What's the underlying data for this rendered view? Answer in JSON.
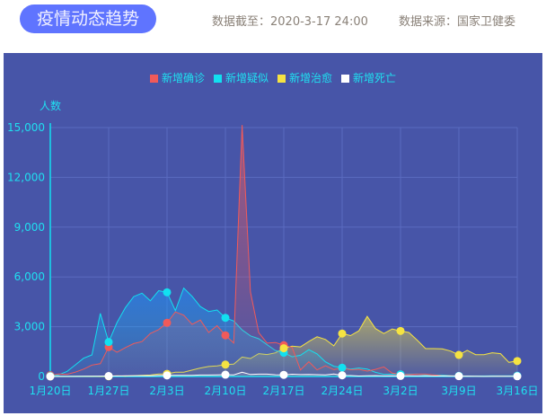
{
  "header": {
    "title": "疫情动态趋势",
    "updated": "数据截至：2020-3-17 24:00",
    "source": "数据来源：国家卫健委"
  },
  "chart_data": {
    "type": "area",
    "ylabel": "人数",
    "ylim": [
      0,
      15000
    ],
    "yticks": [
      "0",
      "3,000",
      "6,000",
      "9,000",
      "12,000",
      "15,000"
    ],
    "xticks": [
      "1月20日",
      "1月27日",
      "2月3日",
      "2月10日",
      "2月17日",
      "2月24日",
      "3月2日",
      "3月9日",
      "3月16日"
    ],
    "x_start": "1月20日",
    "x_end": "3月16日",
    "grid": true,
    "legend": "top",
    "series": [
      {
        "name": "新增确诊",
        "color": "#f05a5a",
        "values": [
          77,
          149,
          131,
          259,
          444,
          688,
          769,
          1771,
          1459,
          1737,
          1982,
          2102,
          2590,
          2829,
          3235,
          3887,
          3694,
          3143,
          3399,
          2656,
          3062,
          2478,
          2015,
          15152,
          5090,
          2641,
          2009,
          2048,
          1886,
          1749,
          394,
          889,
          397,
          648,
          409,
          508,
          406,
          433,
          327,
          427,
          573,
          202,
          125,
          119,
          139,
          143,
          99,
          44,
          40,
          19,
          24,
          15,
          8,
          11,
          20,
          16,
          21
        ]
      },
      {
        "name": "新增疑似",
        "color": "#12e0f0",
        "values": [
          27,
          100,
          300,
          700,
          1100,
          1300,
          3800,
          2077,
          3248,
          4148,
          4812,
          5019,
          4562,
          5173,
          5072,
          3971,
          5328,
          4833,
          4214,
          3916,
          4008,
          3536,
          3342,
          2807,
          2450,
          2277,
          1918,
          1563,
          1432,
          1185,
          1277,
          1614,
          1361,
          882,
          620,
          530,
          439,
          508,
          452,
          248,
          132,
          141,
          129,
          143,
          143,
          102,
          99,
          84,
          60,
          36,
          31,
          33,
          33,
          45,
          39,
          41,
          45
        ]
      },
      {
        "name": "新增治愈",
        "color": "#f5e342",
        "values": [
          0,
          3,
          0,
          6,
          3,
          11,
          2,
          9,
          43,
          21,
          47,
          72,
          85,
          147,
          157,
          262,
          261,
          387,
          510,
          600,
          632,
          716,
          744,
          1171,
          1081,
          1373,
          1323,
          1425,
          1701,
          1824,
          1779,
          2109,
          2394,
          2231,
          1846,
          2589,
          2464,
          2750,
          3622,
          2885,
          2589,
          2867,
          2742,
          2652,
          2189,
          1681,
          1678,
          1661,
          1535,
          1297,
          1578,
          1318,
          1318,
          1427,
          1375,
          849,
          930
        ]
      },
      {
        "name": "新增死亡",
        "color": "#ffffff",
        "values": [
          0,
          3,
          8,
          8,
          16,
          15,
          24,
          26,
          26,
          38,
          43,
          46,
          45,
          57,
          64,
          65,
          73,
          73,
          86,
          89,
          97,
          108,
          97,
          254,
          121,
          143,
          142,
          105,
          98,
          136,
          114,
          118,
          109,
          97,
          150,
          71,
          52,
          29,
          44,
          47,
          35,
          42,
          31,
          38,
          31,
          30,
          28,
          27,
          22,
          17,
          22,
          11,
          7,
          13,
          10,
          14,
          13
        ]
      }
    ]
  }
}
